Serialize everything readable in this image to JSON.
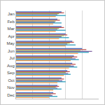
{
  "chart_data": {
    "type": "bar",
    "orientation": "horizontal",
    "categories": [
      "Jan",
      "Feb",
      "Mar",
      "Apr",
      "May",
      "Jun",
      "Jul",
      "Aug",
      "Sep",
      "Oct",
      "Nov",
      "Dec"
    ],
    "series": [
      {
        "color": "#4472c4",
        "values": [
          55,
          50,
          55,
          60,
          68,
          80,
          70,
          68,
          62,
          55,
          50,
          45
        ]
      },
      {
        "color": "#c0504d",
        "values": [
          58,
          53,
          58,
          62,
          70,
          85,
          74,
          72,
          65,
          58,
          52,
          48
        ]
      },
      {
        "color": "#9bbb59",
        "values": [
          52,
          48,
          52,
          58,
          65,
          78,
          68,
          66,
          60,
          52,
          48,
          42
        ]
      },
      {
        "color": "#8064a2",
        "values": [
          50,
          47,
          50,
          55,
          62,
          92,
          72,
          70,
          63,
          56,
          50,
          44
        ]
      },
      {
        "color": "#4bacc6",
        "values": [
          60,
          55,
          60,
          64,
          72,
          88,
          76,
          74,
          66,
          60,
          55,
          50
        ]
      },
      {
        "color": "#f79646",
        "values": [
          48,
          45,
          48,
          52,
          60,
          75,
          66,
          64,
          58,
          50,
          45,
          40
        ]
      }
    ],
    "xlim": [
      0,
      100
    ],
    "xticks": [
      0,
      20,
      40,
      60,
      80,
      100
    ],
    "grid": true,
    "tick_labels": "y"
  }
}
